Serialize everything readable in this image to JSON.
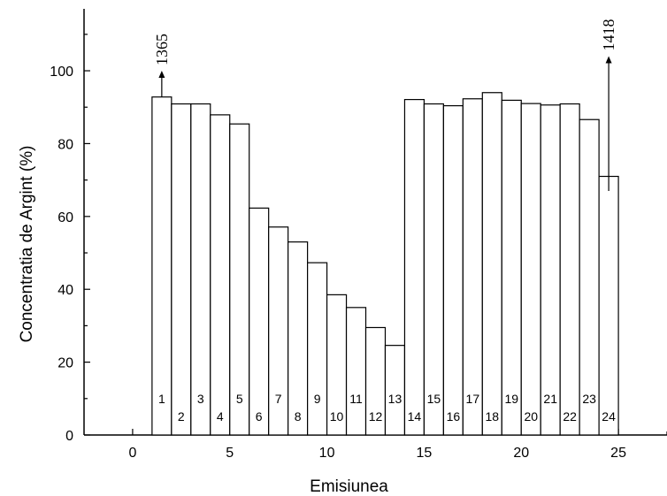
{
  "chart_data": {
    "type": "bar",
    "xlabel": "Emisiunea",
    "ylabel": "Concentratia de Argint (%)",
    "xlim": [
      -2.5,
      27.5
    ],
    "ylim": [
      0,
      117
    ],
    "xticks": [
      0,
      5,
      10,
      15,
      20,
      25
    ],
    "yticks": [
      0,
      20,
      40,
      60,
      80,
      100
    ],
    "grid": false,
    "legend": "none",
    "bar_width": 1,
    "series": [
      {
        "color": "#000000",
        "fill": "#ffffff",
        "x": [
          1.5,
          2.5,
          3.5,
          4.5,
          5.5,
          6.5,
          7.5,
          8.5,
          9.5,
          10.5,
          11.5,
          12.5,
          13.5,
          14.5,
          15.5,
          16.5,
          17.5,
          18.5,
          19.5,
          20.5,
          21.5,
          22.5,
          23.5,
          24.5
        ],
        "values": [
          92.8,
          90.9,
          90.9,
          87.9,
          85.4,
          62.3,
          57.1,
          53.0,
          47.3,
          38.5,
          35.0,
          29.5,
          24.6,
          92.1,
          90.9,
          90.4,
          92.3,
          94.0,
          91.9,
          91.0,
          90.6,
          90.9,
          86.6,
          71.0
        ],
        "labels": [
          "1",
          "2",
          "3",
          "4",
          "5",
          "6",
          "7",
          "8",
          "9",
          "10",
          "11",
          "12",
          "13",
          "14",
          "15",
          "16",
          "17",
          "18",
          "19",
          "20",
          "21",
          "22",
          "23",
          "24"
        ]
      }
    ],
    "annotations": [
      {
        "text": "1365",
        "x": 1.5,
        "y_from": 92.8,
        "y_to": 100
      },
      {
        "text": "1418",
        "x": 24.5,
        "y_from": 67,
        "y_to": 104
      }
    ]
  }
}
